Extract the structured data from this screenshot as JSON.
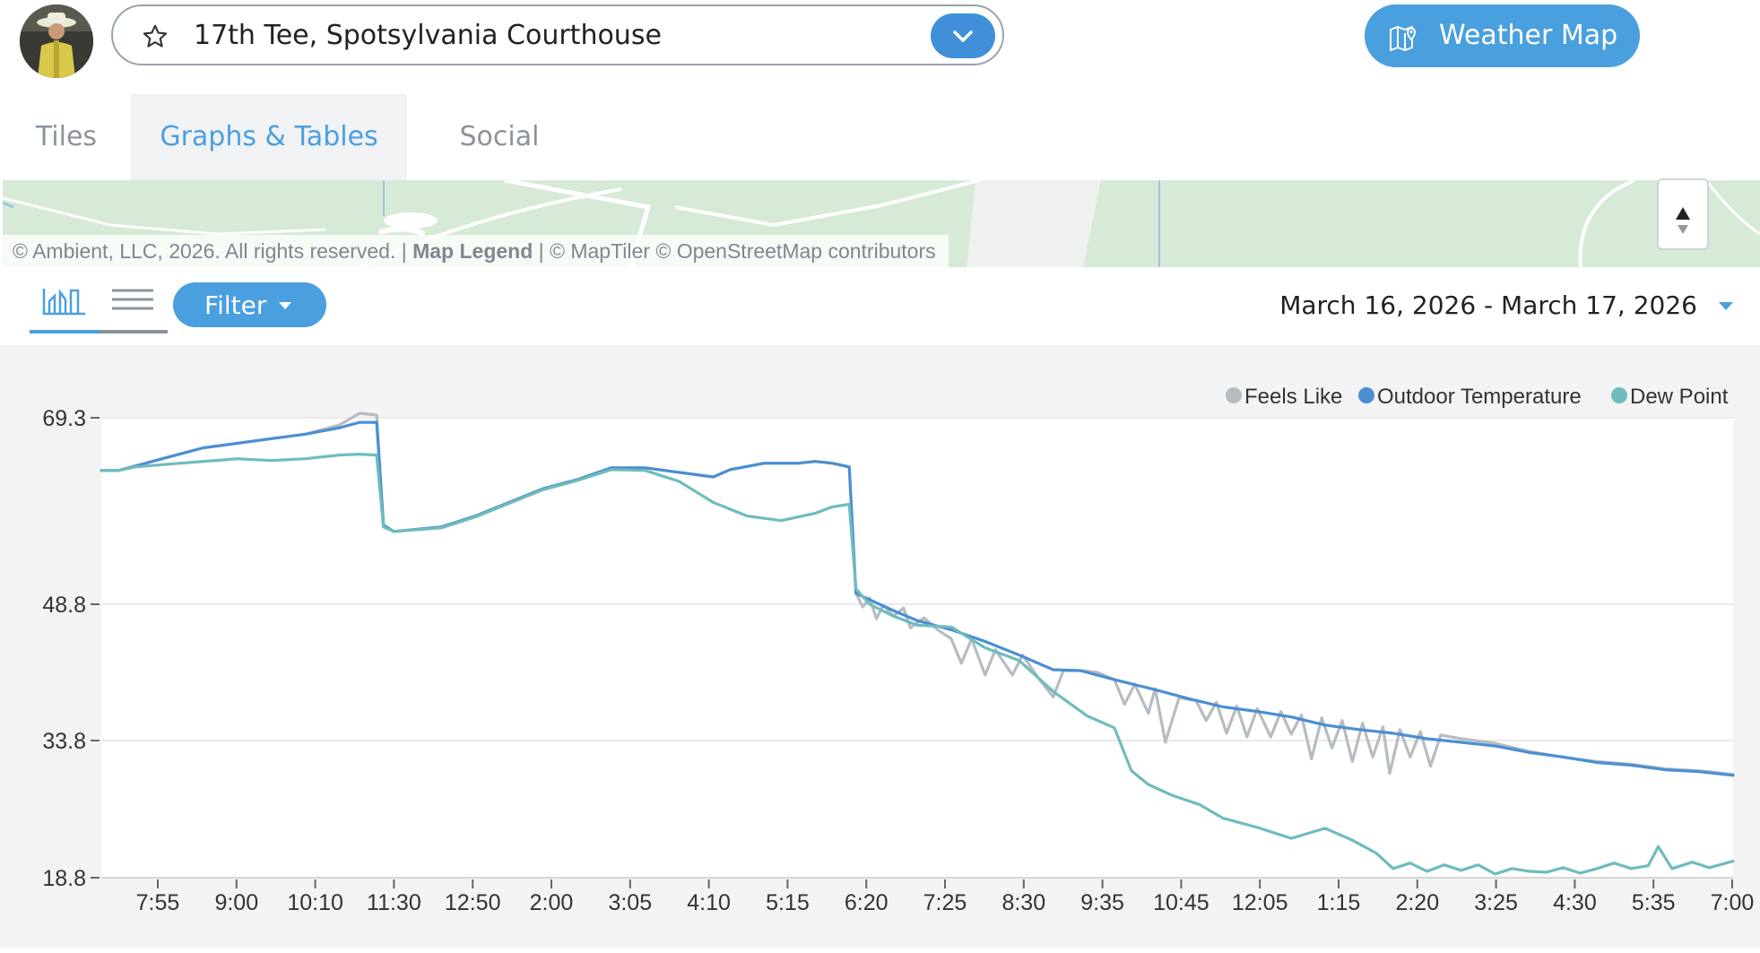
{
  "header": {
    "station_name": "17th Tee, Spotsylvania Courthouse",
    "weather_map_label": "Weather Map"
  },
  "tabs": [
    {
      "label": "Tiles",
      "active": false
    },
    {
      "label": "Graphs & Tables",
      "active": true
    },
    {
      "label": "Social",
      "active": false
    }
  ],
  "map": {
    "attribution_pre": "© Ambient, LLC, 2026. All rights reserved. | ",
    "attribution_legend": "Map Legend",
    "attribution_post": " | © MapTiler © OpenStreetMap contributors"
  },
  "toolbar": {
    "filter_label": "Filter",
    "date_range": "March 16, 2026 - March 17, 2026"
  },
  "colors": {
    "feels_like": "#b6bcc2",
    "outdoor_temperature": "#4a8fd3",
    "dew_point": "#6fbcbc",
    "accent": "#4a9fde"
  },
  "chart_data": {
    "type": "line",
    "ytick_labels": [
      "69.3",
      "48.8",
      "33.8",
      "18.8"
    ],
    "yticks": [
      69.3,
      48.8,
      33.8,
      18.8
    ],
    "ylim": [
      18.8,
      69.3
    ],
    "xtick_labels": [
      "7:55",
      "9:00",
      "10:10",
      "11:30",
      "12:50",
      "2:00",
      "3:05",
      "4:10",
      "5:15",
      "6:20",
      "7:25",
      "8:30",
      "9:35",
      "10:45",
      "12:05",
      "1:15",
      "2:20",
      "3:25",
      "4:30",
      "5:35",
      "7:00"
    ],
    "grid": true,
    "legend_position": "top-right",
    "x_note": "x values are hours elapsed since the first sample of the shown range (7:00 PM Mar 16 to 7:00 PM Mar 17)",
    "series": [
      {
        "name": "Feels Like",
        "color_key": "feels_like",
        "points": [
          [
            0,
            63.5
          ],
          [
            0.5,
            63.5
          ],
          [
            1,
            64.0
          ],
          [
            2,
            65.0
          ],
          [
            3,
            66.0
          ],
          [
            4,
            66.5
          ],
          [
            5,
            67.0
          ],
          [
            6,
            67.5
          ],
          [
            7,
            68.5
          ],
          [
            7.6,
            69.8
          ],
          [
            8.1,
            69.6
          ],
          [
            8.3,
            57.5
          ],
          [
            8.6,
            56.8
          ],
          [
            10,
            57.3
          ],
          [
            11,
            58.5
          ],
          [
            12,
            60.0
          ],
          [
            13,
            61.5
          ],
          [
            14,
            62.5
          ],
          [
            15,
            63.8
          ],
          [
            16,
            63.8
          ],
          [
            17,
            63.3
          ],
          [
            18,
            62.8
          ],
          [
            18.5,
            63.6
          ],
          [
            19.5,
            64.3
          ],
          [
            20.5,
            64.3
          ],
          [
            21,
            64.5
          ],
          [
            21.5,
            64.3
          ],
          [
            22.0,
            63.9
          ],
          [
            22.2,
            50.0
          ],
          [
            22.4,
            48.5
          ],
          [
            22.6,
            49.5
          ],
          [
            22.8,
            47.2
          ],
          [
            23.0,
            48.7
          ],
          [
            23.3,
            47.5
          ],
          [
            23.6,
            48.4
          ],
          [
            23.8,
            46.2
          ],
          [
            24.2,
            47.3
          ],
          [
            24.6,
            46.0
          ],
          [
            25.0,
            45.0
          ],
          [
            25.3,
            42.3
          ],
          [
            25.6,
            45.0
          ],
          [
            26.0,
            41.0
          ],
          [
            26.3,
            43.8
          ],
          [
            26.8,
            41.0
          ],
          [
            27.1,
            43.2
          ],
          [
            27.6,
            40.5
          ],
          [
            28.0,
            38.6
          ],
          [
            28.3,
            41.5
          ],
          [
            28.8,
            41.5
          ],
          [
            29.3,
            41.3
          ],
          [
            29.8,
            40.5
          ],
          [
            30.1,
            37.8
          ],
          [
            30.4,
            40.0
          ],
          [
            30.8,
            36.8
          ],
          [
            31.0,
            39.5
          ],
          [
            31.3,
            33.6
          ],
          [
            31.7,
            38.5
          ],
          [
            32.2,
            38.2
          ],
          [
            32.5,
            36.0
          ],
          [
            32.8,
            38.0
          ],
          [
            33.1,
            34.6
          ],
          [
            33.4,
            37.6
          ],
          [
            33.7,
            34.2
          ],
          [
            34.0,
            37.3
          ],
          [
            34.4,
            34.2
          ],
          [
            34.7,
            37.0
          ],
          [
            35.0,
            34.5
          ],
          [
            35.3,
            36.6
          ],
          [
            35.6,
            31.8
          ],
          [
            35.9,
            36.3
          ],
          [
            36.2,
            33.0
          ],
          [
            36.5,
            36.0
          ],
          [
            36.8,
            31.5
          ],
          [
            37.1,
            35.7
          ],
          [
            37.4,
            32.0
          ],
          [
            37.7,
            35.3
          ],
          [
            37.9,
            30.2
          ],
          [
            38.2,
            35.0
          ],
          [
            38.5,
            32.0
          ],
          [
            38.8,
            34.8
          ],
          [
            39.1,
            31.0
          ],
          [
            39.4,
            34.4
          ],
          [
            40,
            34.0
          ],
          [
            41,
            33.5
          ],
          [
            42,
            32.6
          ],
          [
            43,
            32.0
          ],
          [
            44,
            31.5
          ],
          [
            45,
            31.2
          ],
          [
            46,
            30.7
          ],
          [
            47,
            30.5
          ],
          [
            48,
            30.1
          ]
        ]
      },
      {
        "name": "Outdoor Temperature",
        "color_key": "outdoor_temperature",
        "points": [
          [
            0,
            63.5
          ],
          [
            0.5,
            63.5
          ],
          [
            1,
            64.0
          ],
          [
            2,
            65.0
          ],
          [
            3,
            66.0
          ],
          [
            4,
            66.5
          ],
          [
            5,
            67.0
          ],
          [
            6,
            67.5
          ],
          [
            7,
            68.2
          ],
          [
            7.6,
            68.8
          ],
          [
            8.1,
            68.8
          ],
          [
            8.3,
            57.5
          ],
          [
            8.6,
            56.8
          ],
          [
            10,
            57.3
          ],
          [
            11,
            58.5
          ],
          [
            12,
            60.0
          ],
          [
            13,
            61.5
          ],
          [
            14,
            62.5
          ],
          [
            15,
            63.8
          ],
          [
            16,
            63.8
          ],
          [
            17,
            63.3
          ],
          [
            18,
            62.8
          ],
          [
            18.5,
            63.6
          ],
          [
            19.5,
            64.3
          ],
          [
            20.5,
            64.3
          ],
          [
            21,
            64.5
          ],
          [
            21.5,
            64.3
          ],
          [
            22.0,
            63.9
          ],
          [
            22.2,
            50.0
          ],
          [
            22.6,
            49.3
          ],
          [
            23.3,
            48.1
          ],
          [
            24.0,
            47.0
          ],
          [
            25.0,
            46.0
          ],
          [
            26.0,
            44.7
          ],
          [
            27.0,
            43.2
          ],
          [
            28.0,
            41.6
          ],
          [
            28.8,
            41.5
          ],
          [
            29.8,
            40.5
          ],
          [
            31.0,
            39.4
          ],
          [
            32.0,
            38.4
          ],
          [
            33.0,
            37.5
          ],
          [
            34.0,
            37.0
          ],
          [
            35.0,
            36.4
          ],
          [
            36.0,
            35.5
          ],
          [
            37.0,
            35.0
          ],
          [
            38.0,
            34.6
          ],
          [
            39.0,
            34.0
          ],
          [
            40,
            33.6
          ],
          [
            41,
            33.2
          ],
          [
            42,
            32.5
          ],
          [
            43,
            32.0
          ],
          [
            44,
            31.4
          ],
          [
            45,
            31.1
          ],
          [
            46,
            30.6
          ],
          [
            47,
            30.4
          ],
          [
            48,
            30.0
          ]
        ]
      },
      {
        "name": "Dew Point",
        "color_key": "dew_point",
        "points": [
          [
            0,
            63.5
          ],
          [
            0.5,
            63.5
          ],
          [
            1,
            63.9
          ],
          [
            2,
            64.2
          ],
          [
            3,
            64.5
          ],
          [
            4,
            64.8
          ],
          [
            5,
            64.6
          ],
          [
            6,
            64.8
          ],
          [
            7,
            65.2
          ],
          [
            7.6,
            65.3
          ],
          [
            8.1,
            65.2
          ],
          [
            8.3,
            57.3
          ],
          [
            8.6,
            56.8
          ],
          [
            10,
            57.2
          ],
          [
            11,
            58.4
          ],
          [
            12,
            59.9
          ],
          [
            13,
            61.4
          ],
          [
            14,
            62.4
          ],
          [
            15,
            63.6
          ],
          [
            16,
            63.5
          ],
          [
            17,
            62.3
          ],
          [
            18,
            60.0
          ],
          [
            19,
            58.5
          ],
          [
            20,
            58.0
          ],
          [
            21,
            58.8
          ],
          [
            21.5,
            59.5
          ],
          [
            22.0,
            59.8
          ],
          [
            22.2,
            50.5
          ],
          [
            22.6,
            48.8
          ],
          [
            23.3,
            47.5
          ],
          [
            24.0,
            46.5
          ],
          [
            25.0,
            46.3
          ],
          [
            26.0,
            44.0
          ],
          [
            27.0,
            42.6
          ],
          [
            28.0,
            39.2
          ],
          [
            29.0,
            36.5
          ],
          [
            29.8,
            35.2
          ],
          [
            30.3,
            30.5
          ],
          [
            30.8,
            29.0
          ],
          [
            31.5,
            27.8
          ],
          [
            32.3,
            26.8
          ],
          [
            33.0,
            25.3
          ],
          [
            34.0,
            24.3
          ],
          [
            35.0,
            23.1
          ],
          [
            36.0,
            24.2
          ],
          [
            36.8,
            22.9
          ],
          [
            37.5,
            21.5
          ],
          [
            38.0,
            19.8
          ],
          [
            38.5,
            20.4
          ],
          [
            39.0,
            19.5
          ],
          [
            39.5,
            20.2
          ],
          [
            40,
            19.6
          ],
          [
            40.5,
            20.2
          ],
          [
            41,
            19.2
          ],
          [
            41.5,
            19.8
          ],
          [
            42,
            19.5
          ],
          [
            42.5,
            19.4
          ],
          [
            43,
            19.9
          ],
          [
            43.5,
            19.3
          ],
          [
            44,
            19.8
          ],
          [
            44.5,
            20.4
          ],
          [
            45,
            19.8
          ],
          [
            45.5,
            20.1
          ],
          [
            45.8,
            22.2
          ],
          [
            46.2,
            19.8
          ],
          [
            46.8,
            20.5
          ],
          [
            47.3,
            19.9
          ],
          [
            48,
            20.6
          ]
        ]
      }
    ]
  }
}
